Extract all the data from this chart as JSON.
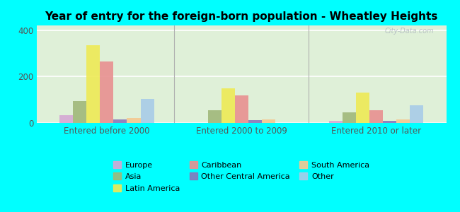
{
  "title": "Year of entry for the foreign-born population - Wheatley Heights",
  "groups": [
    "Entered before 2000",
    "Entered 2000 to 2009",
    "Entered 2010 or later"
  ],
  "series": [
    {
      "name": "Europe",
      "color": "#d4a8d4",
      "values": [
        35,
        0,
        10
      ]
    },
    {
      "name": "Asia",
      "color": "#a0b87a",
      "values": [
        95,
        55,
        45
      ]
    },
    {
      "name": "Latin America",
      "color": "#eeea55",
      "values": [
        335,
        150,
        130
      ]
    },
    {
      "name": "Caribbean",
      "color": "#e89090",
      "values": [
        265,
        120,
        55
      ]
    },
    {
      "name": "Other Central America",
      "color": "#8878bb",
      "values": [
        15,
        12,
        10
      ]
    },
    {
      "name": "South America",
      "color": "#f5c890",
      "values": [
        22,
        15,
        15
      ]
    },
    {
      "name": "Other",
      "color": "#a8cce8",
      "values": [
        105,
        0,
        75
      ]
    }
  ],
  "legend_order": [
    [
      0,
      1,
      2
    ],
    [
      3,
      4,
      5
    ],
    [
      6
    ]
  ],
  "legend_cols": [
    [
      "Europe",
      "Caribbean",
      "Other"
    ],
    [
      "Asia",
      "Other Central America"
    ],
    [
      "Latin America",
      "South America"
    ]
  ],
  "ylim": [
    0,
    420
  ],
  "yticks": [
    0,
    200,
    400
  ],
  "background_color": "#00ffff",
  "plot_bg": "#e8f5e0",
  "watermark": "City-Data.com",
  "bar_width": 0.1,
  "title_fontsize": 11
}
